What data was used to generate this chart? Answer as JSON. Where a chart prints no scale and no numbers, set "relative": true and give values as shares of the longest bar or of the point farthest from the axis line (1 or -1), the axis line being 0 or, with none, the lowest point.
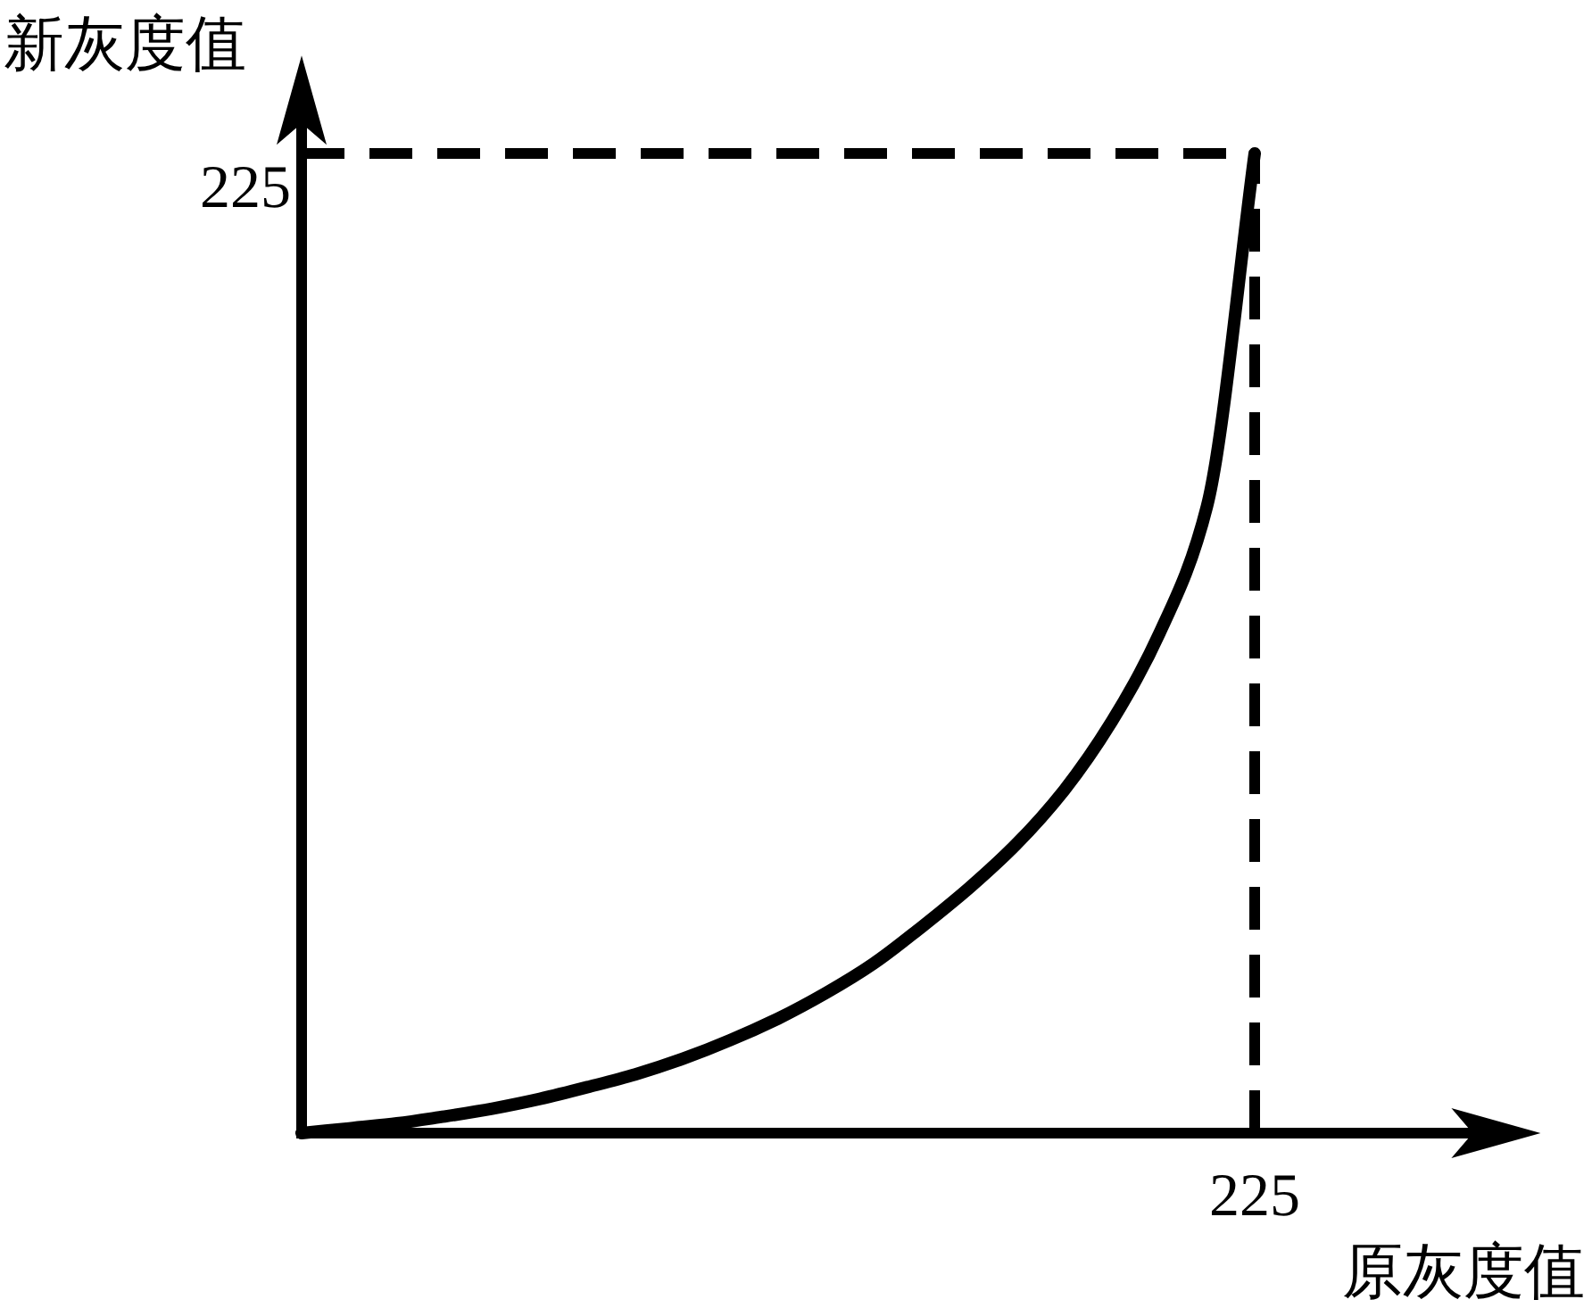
{
  "chart_data": {
    "type": "line",
    "xlabel": "原灰度值",
    "ylabel": "新灰度值",
    "relative": true,
    "categories": [
      null,
      null,
      null,
      null,
      null,
      null,
      null,
      null,
      null,
      null,
      null,
      null,
      null,
      null,
      null,
      null,
      null,
      null,
      null,
      null,
      null
    ],
    "series": [
      {
        "color": "#000000",
        "values": [
          0,
          0.005,
          0.01,
          0.017,
          0.025,
          0.035,
          0.047,
          0.06,
          0.076,
          0.095,
          0.117,
          0.143,
          0.173,
          0.21,
          0.25,
          0.295,
          0.35,
          0.42,
          0.51,
          0.64,
          1
        ]
      }
    ],
    "ref_lines": [
      {
        "axis": "y",
        "value": 1,
        "line_style": "dashed",
        "color": "#000000"
      }
    ],
    "annotations": [
      "225",
      "225"
    ],
    "line_style": "solid",
    "marker": "none"
  }
}
